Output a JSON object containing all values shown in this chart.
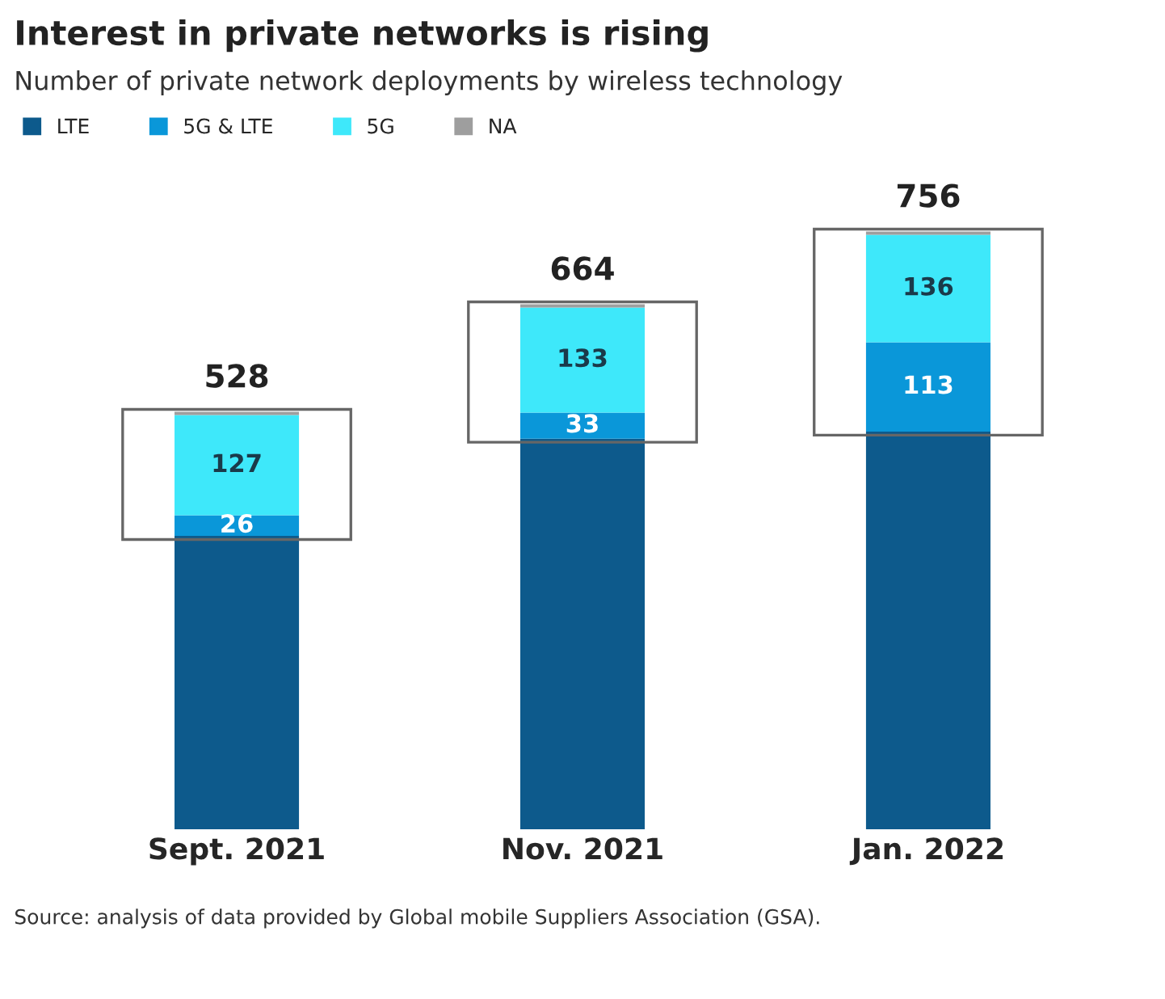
{
  "chart_data": {
    "type": "bar",
    "stacked": true,
    "title": "Interest in private networks is rising",
    "subtitle": "Number of private network deployments by wireless technology",
    "categories": [
      "Sept. 2021",
      "Nov. 2021",
      "Jan. 2022"
    ],
    "series": [
      {
        "name": "LTE",
        "color": "#0d5a8c",
        "values": [
          371,
          494,
          503
        ]
      },
      {
        "name": "5G & LTE",
        "color": "#0a97d9",
        "values": [
          26,
          33,
          113
        ],
        "value_labels": [
          "26",
          "33",
          "113"
        ]
      },
      {
        "name": "5G",
        "color": "#3ee8fa",
        "values": [
          127,
          133,
          136
        ],
        "value_labels": [
          "127",
          "133",
          "136"
        ]
      },
      {
        "name": "NA",
        "color": "#9e9e9e",
        "values": [
          4,
          4,
          4
        ]
      }
    ],
    "totals": [
      "528",
      "664",
      "756"
    ],
    "legend": "top left",
    "grid": false,
    "annotations": [
      "Source: analysis of data provided by Global mobile Suppliers Association (GSA)."
    ]
  }
}
